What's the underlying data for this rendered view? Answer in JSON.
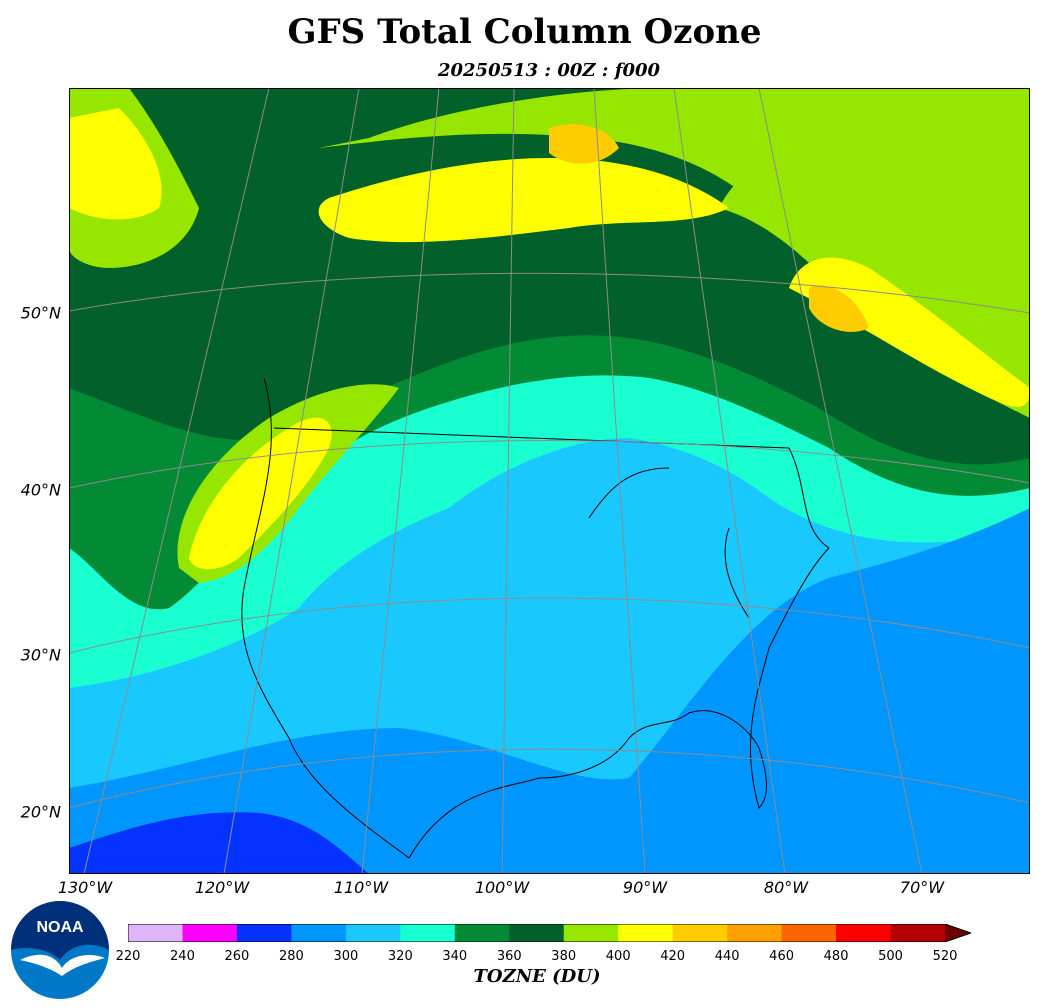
{
  "title": "GFS Total Column Ozone",
  "subtitle": "20250513 : 00Z : f000",
  "map": {
    "lat_labels": [
      {
        "text": "50°N",
        "lat": 50
      },
      {
        "text": "40°N",
        "lat": 40
      },
      {
        "text": "30°N",
        "lat": 30
      },
      {
        "text": "20°N",
        "lat": 20
      }
    ],
    "lon_labels": [
      {
        "text": "130°W",
        "lon": -130
      },
      {
        "text": "120°W",
        "lon": -120
      },
      {
        "text": "110°W",
        "lon": -110
      },
      {
        "text": "100°W",
        "lon": -100
      },
      {
        "text": "90°W",
        "lon": -90
      },
      {
        "text": "80°W",
        "lon": -80
      },
      {
        "text": "70°W",
        "lon": -70
      }
    ]
  },
  "colorbar": {
    "label": "TOZNE (DU)",
    "ticks": [
      "220",
      "240",
      "260",
      "280",
      "300",
      "320",
      "340",
      "360",
      "380",
      "400",
      "420",
      "440",
      "460",
      "480",
      "500",
      "520"
    ],
    "colors": [
      "#e0b4f8",
      "#ff00ff",
      "#0433ff",
      "#0096ff",
      "#19c8ff",
      "#19ffd2",
      "#038a35",
      "#02612a",
      "#96e600",
      "#ffff00",
      "#ffcc00",
      "#ffa000",
      "#ff6400",
      "#ff0000",
      "#b40000",
      "#6e0000"
    ],
    "extend": "max"
  },
  "logo": {
    "text": "NOAA"
  }
}
